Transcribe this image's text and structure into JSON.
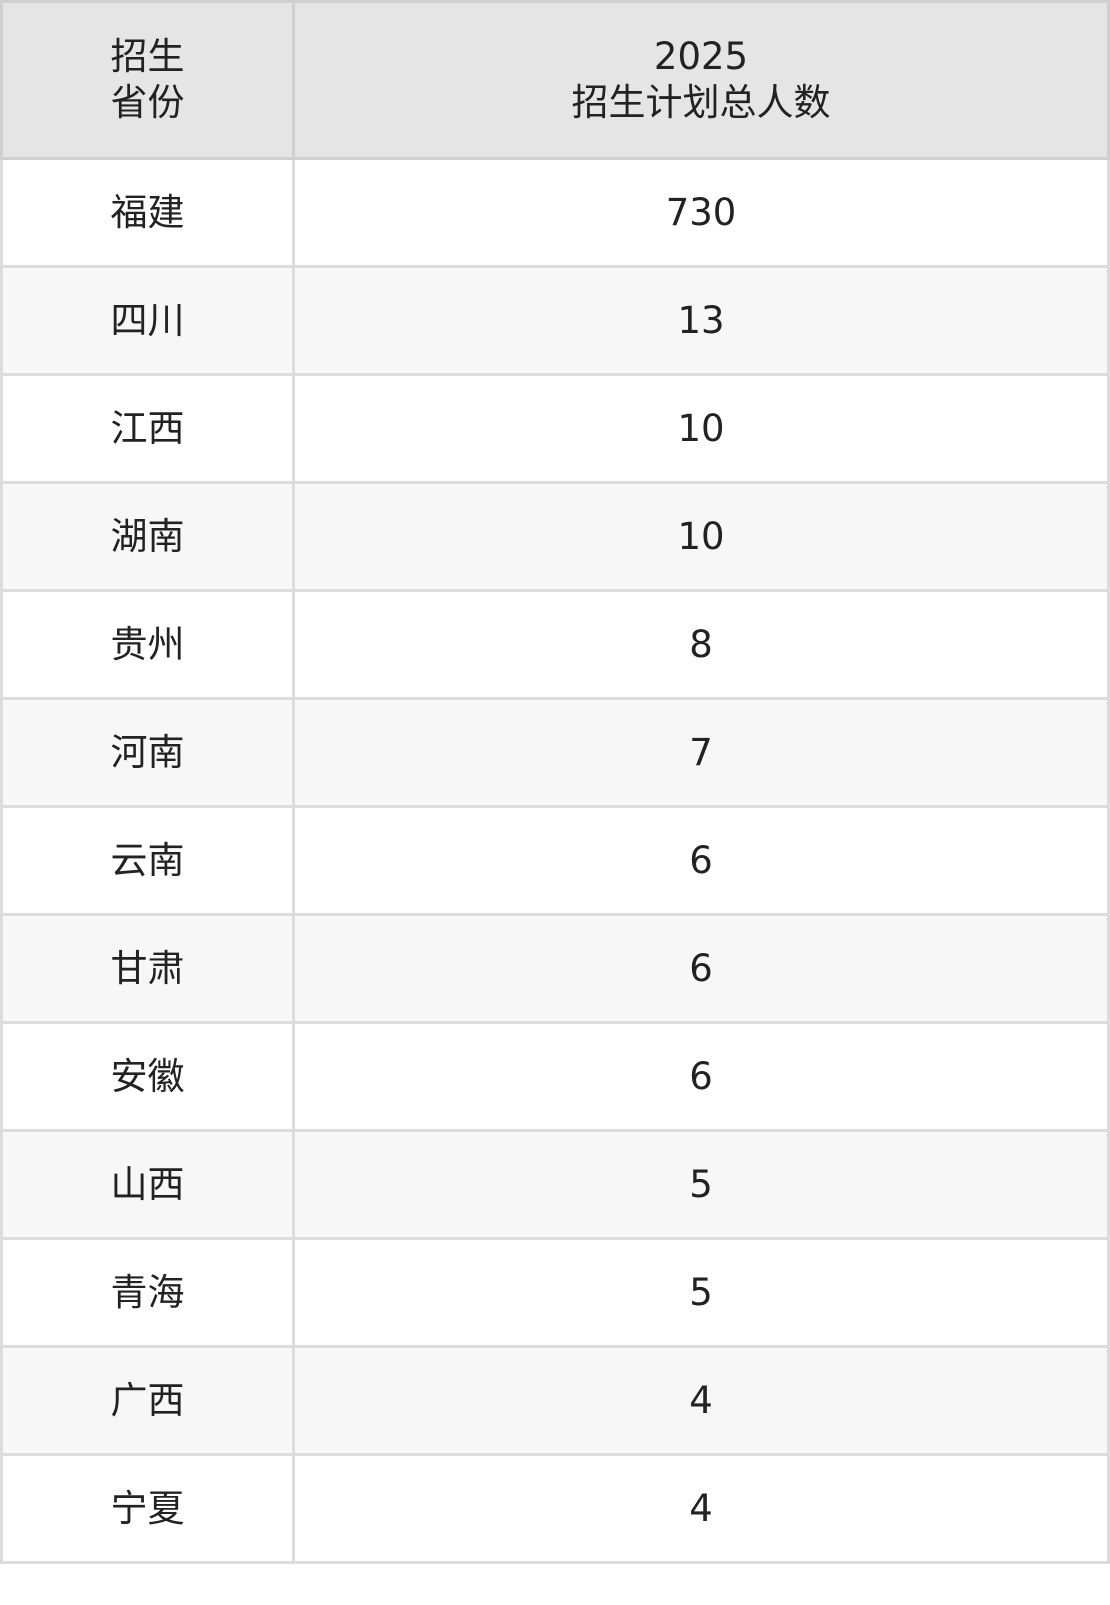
{
  "table": {
    "headers": {
      "province_line1": "招生",
      "province_line2": "省份",
      "plan_line1": "2025",
      "plan_line2": "招生计划总人数"
    },
    "rows": [
      {
        "province": "福建",
        "count": "730"
      },
      {
        "province": "四川",
        "count": "13"
      },
      {
        "province": "江西",
        "count": "10"
      },
      {
        "province": "湖南",
        "count": "10"
      },
      {
        "province": "贵州",
        "count": "8"
      },
      {
        "province": "河南",
        "count": "7"
      },
      {
        "province": "云南",
        "count": "6"
      },
      {
        "province": "甘肃",
        "count": "6"
      },
      {
        "province": "安徽",
        "count": "6"
      },
      {
        "province": "山西",
        "count": "5"
      },
      {
        "province": "青海",
        "count": "5"
      },
      {
        "province": "广西",
        "count": "4"
      },
      {
        "province": "宁夏",
        "count": "4"
      }
    ]
  }
}
